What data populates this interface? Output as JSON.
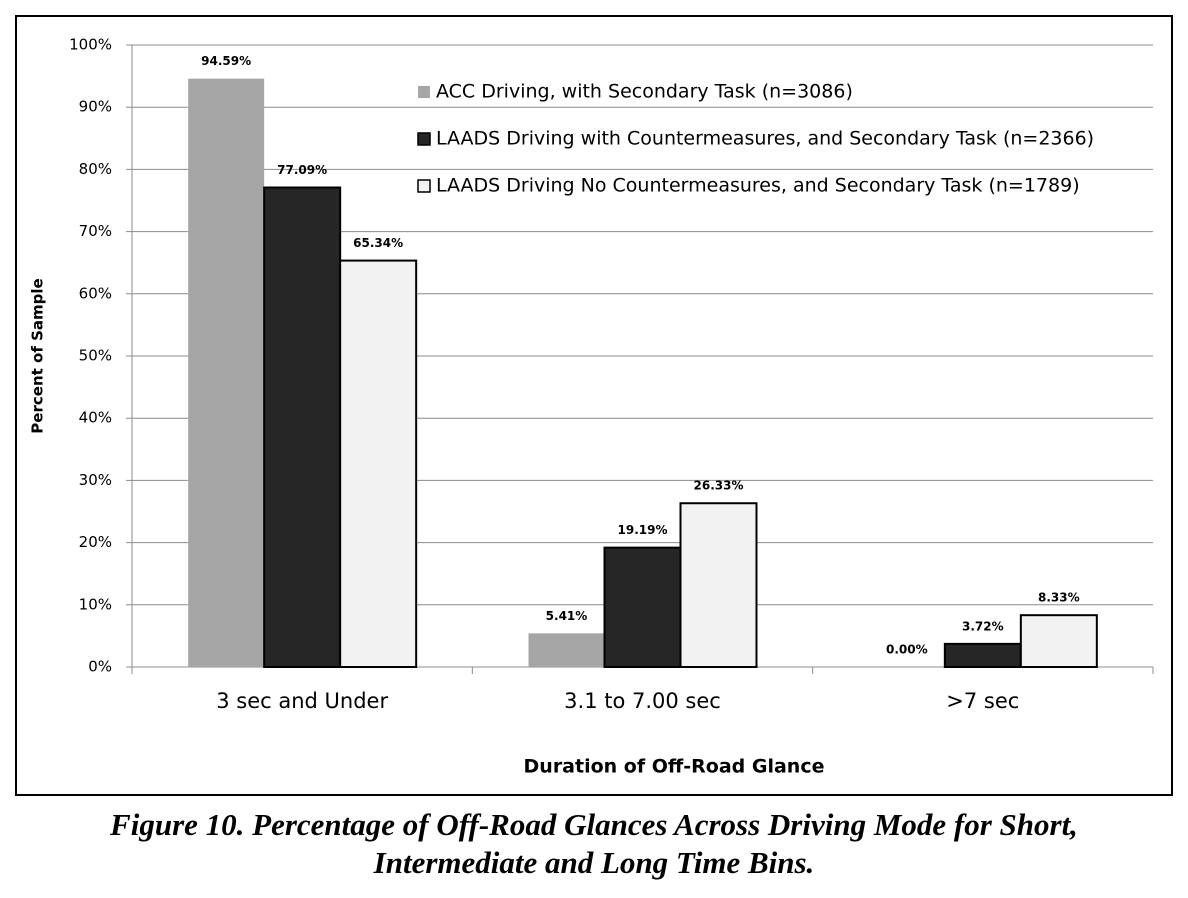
{
  "chart_data": {
    "type": "bar",
    "ylabel": "Percent of Sample",
    "xlabel": "Duration of Off-Road Glance",
    "categories": [
      "3 sec and Under",
      "3.1 to 7.00 sec",
      ">7 sec"
    ],
    "series": [
      {
        "name": "ACC Driving, with Secondary Task (n=3086)",
        "color": "#a6a6a6",
        "values": [
          94.59,
          5.41,
          0.0
        ],
        "value_labels": [
          "94.59%",
          "5.41%",
          "0.00%"
        ]
      },
      {
        "name": "LAADS Driving with Countermeasures, and Secondary Task (n=2366)",
        "color": "#262626",
        "values": [
          77.09,
          19.19,
          3.72
        ],
        "value_labels": [
          "77.09%",
          "19.19%",
          "3.72%"
        ]
      },
      {
        "name": "LAADS Driving No Countermeasures, and Secondary Task (n=1789)",
        "color": "#f2f2f2",
        "values": [
          65.34,
          26.33,
          8.33
        ],
        "value_labels": [
          "65.34%",
          "26.33%",
          "8.33%"
        ]
      }
    ],
    "ylim": [
      0,
      100
    ],
    "yticks": [
      {
        "value": 0,
        "label": "0%"
      },
      {
        "value": 10,
        "label": "10%"
      },
      {
        "value": 20,
        "label": "20%"
      },
      {
        "value": 30,
        "label": "30%"
      },
      {
        "value": 40,
        "label": "40%"
      },
      {
        "value": 50,
        "label": "50%"
      },
      {
        "value": 60,
        "label": "60%"
      },
      {
        "value": 70,
        "label": "70%"
      },
      {
        "value": 80,
        "label": "80%"
      },
      {
        "value": 90,
        "label": "90%"
      },
      {
        "value": 100,
        "label": "100%"
      }
    ],
    "grid": true,
    "legend": "top-right"
  },
  "caption": [
    "Figure 10. Percentage of Off-Road Glances Across Driving Mode for Short,",
    "Intermediate and Long Time Bins."
  ]
}
